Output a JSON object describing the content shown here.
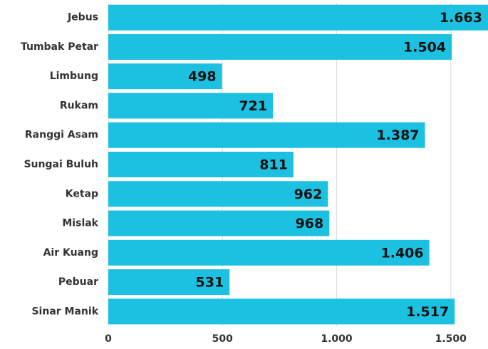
{
  "chart_data": {
    "type": "hbar",
    "categories": [
      "Jebus",
      "Tumbak Petar",
      "Limbung",
      "Rukam",
      "Ranggi Asam",
      "Sungai Buluh",
      "Ketap",
      "Mislak",
      "Air Kuang",
      "Pebuar",
      "Sinar Manik"
    ],
    "values": [
      1663,
      1504,
      498,
      721,
      1387,
      811,
      962,
      968,
      1406,
      531,
      1517
    ],
    "value_labels": [
      "1.663",
      "1.504",
      "498",
      "721",
      "1.387",
      "811",
      "962",
      "968",
      "1.406",
      "531",
      "1.517"
    ],
    "color": "#1cc0e0",
    "xlim": [
      0,
      1663
    ],
    "xticks": [
      0,
      500,
      {
        "value": 1000,
        "label": "1.000"
      },
      {
        "value": 1500,
        "label": "1.500"
      }
    ],
    "grid": true
  }
}
